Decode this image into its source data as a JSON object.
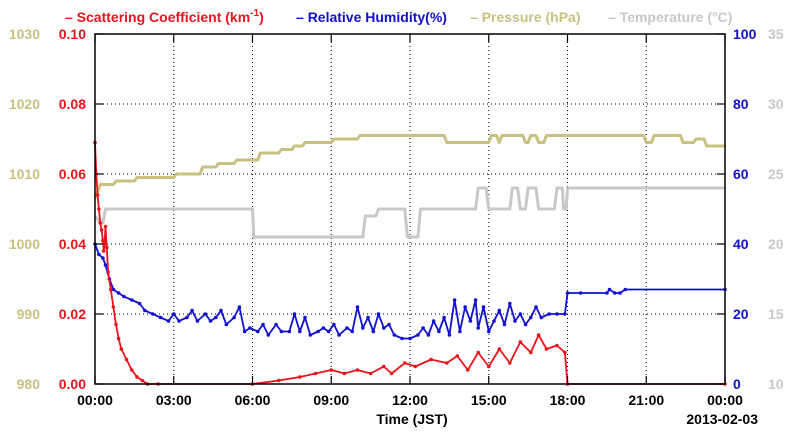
{
  "chart_data": {
    "type": "line",
    "legend": [
      {
        "label": "Scattering Coefficient (km",
        "sup": "-1",
        "suffix": ")",
        "color": "#e8141c"
      },
      {
        "label": "Relative Humidity(%)",
        "color": "#1010d0"
      },
      {
        "label": "Pressure (hPa)",
        "color": "#c8c080"
      },
      {
        "label": "Temperature (°C)",
        "color": "#c8c8c8"
      }
    ],
    "xlabel": "Time (JST)",
    "date_label": "2013-02-03",
    "x_ticks": [
      "00:00",
      "03:00",
      "06:00",
      "09:00",
      "12:00",
      "15:00",
      "18:00",
      "21:00",
      "00:00"
    ],
    "xlim_hours": [
      0,
      24
    ],
    "grid": true,
    "axes": {
      "pressure": {
        "ticks": [
          "1030",
          "1020",
          "1010",
          "1000",
          "990",
          "980"
        ],
        "ylim": [
          980,
          1030
        ],
        "side": "far-left",
        "color": "#c8c080"
      },
      "scattering": {
        "ticks": [
          "0.10",
          "0.08",
          "0.06",
          "0.04",
          "0.02",
          "0.00"
        ],
        "ylim": [
          0,
          0.1
        ],
        "side": "left",
        "color": "#e8141c"
      },
      "humidity": {
        "ticks": [
          "100",
          "80",
          "60",
          "40",
          "20",
          "0"
        ],
        "ylim": [
          0,
          100
        ],
        "side": "right",
        "color": "#1010d0"
      },
      "temperature": {
        "ticks": [
          "35",
          "30",
          "25",
          "20",
          "15",
          "10"
        ],
        "ylim": [
          10,
          35
        ],
        "side": "far-right",
        "color": "#c8c8c8"
      }
    },
    "series": [
      {
        "name": "Pressure (hPa)",
        "axis": "pressure",
        "color": "#c8c080",
        "points": [
          [
            0,
            1006.5
          ],
          [
            0.2,
            1008.5
          ],
          [
            0.7,
            1008.5
          ],
          [
            0.8,
            1009
          ],
          [
            1.5,
            1009
          ],
          [
            1.6,
            1009.5
          ],
          [
            3,
            1009.5
          ],
          [
            3.1,
            1010
          ],
          [
            4,
            1010
          ],
          [
            4.1,
            1011
          ],
          [
            4.6,
            1011
          ],
          [
            4.7,
            1011.5
          ],
          [
            5.3,
            1011.5
          ],
          [
            5.4,
            1012
          ],
          [
            6.2,
            1012
          ],
          [
            6.3,
            1013
          ],
          [
            7,
            1013
          ],
          [
            7.1,
            1013.5
          ],
          [
            7.5,
            1013.5
          ],
          [
            7.6,
            1014
          ],
          [
            7.9,
            1014
          ],
          [
            8,
            1014.5
          ],
          [
            9,
            1014.5
          ],
          [
            9.1,
            1015
          ],
          [
            10,
            1015
          ],
          [
            10.1,
            1015.5
          ],
          [
            13.3,
            1015.5
          ],
          [
            13.4,
            1014.5
          ],
          [
            15,
            1014.5
          ],
          [
            15.1,
            1015.5
          ],
          [
            15.3,
            1015.5
          ],
          [
            15.4,
            1014.5
          ],
          [
            15.5,
            1015.5
          ],
          [
            16.3,
            1015.5
          ],
          [
            16.4,
            1014.5
          ],
          [
            16.5,
            1014.5
          ],
          [
            16.6,
            1015.5
          ],
          [
            16.8,
            1015.5
          ],
          [
            16.9,
            1014.5
          ],
          [
            17.1,
            1014.5
          ],
          [
            17.2,
            1015.5
          ],
          [
            20.9,
            1015.5
          ],
          [
            21,
            1014.5
          ],
          [
            21.2,
            1014.5
          ],
          [
            21.3,
            1015.5
          ],
          [
            22.3,
            1015.5
          ],
          [
            22.4,
            1014.5
          ],
          [
            22.8,
            1014.5
          ],
          [
            22.9,
            1015
          ],
          [
            23.2,
            1015
          ],
          [
            23.3,
            1014
          ],
          [
            24,
            1014
          ]
        ]
      },
      {
        "name": "Temperature (°C)",
        "axis": "temperature",
        "color": "#c8c8c8",
        "points": [
          [
            0,
            22
          ],
          [
            0.2,
            21.5
          ],
          [
            0.3,
            21.5
          ],
          [
            0.4,
            22.5
          ],
          [
            6,
            22.5
          ],
          [
            6.05,
            20.5
          ],
          [
            10.2,
            20.5
          ],
          [
            10.3,
            22
          ],
          [
            10.7,
            22
          ],
          [
            10.8,
            22.5
          ],
          [
            11.8,
            22.5
          ],
          [
            11.9,
            20.5
          ],
          [
            12.3,
            20.5
          ],
          [
            12.4,
            22.5
          ],
          [
            14.5,
            22.5
          ],
          [
            14.6,
            24
          ],
          [
            14.9,
            24
          ],
          [
            15,
            22.5
          ],
          [
            15.8,
            22.5
          ],
          [
            15.9,
            24
          ],
          [
            16.1,
            24
          ],
          [
            16.2,
            22.5
          ],
          [
            16.4,
            22.5
          ],
          [
            16.5,
            24
          ],
          [
            16.8,
            24
          ],
          [
            16.9,
            22.5
          ],
          [
            17.5,
            22.5
          ],
          [
            17.6,
            24
          ],
          [
            17.8,
            24
          ],
          [
            17.85,
            22.5
          ],
          [
            17.95,
            22.5
          ],
          [
            18,
            24
          ],
          [
            24,
            24
          ]
        ]
      },
      {
        "name": "Relative Humidity(%)",
        "axis": "humidity",
        "color": "#1010d0",
        "points": [
          [
            0,
            40
          ],
          [
            0.15,
            37
          ],
          [
            0.3,
            36
          ],
          [
            0.4,
            34
          ],
          [
            0.55,
            30
          ],
          [
            0.7,
            27
          ],
          [
            0.9,
            26
          ],
          [
            1.1,
            25
          ],
          [
            1.4,
            24
          ],
          [
            1.7,
            23
          ],
          [
            1.9,
            21
          ],
          [
            2.2,
            20
          ],
          [
            2.5,
            19
          ],
          [
            2.8,
            18
          ],
          [
            3.0,
            20
          ],
          [
            3.2,
            18
          ],
          [
            3.5,
            19
          ],
          [
            3.7,
            21
          ],
          [
            3.9,
            18
          ],
          [
            4.2,
            20
          ],
          [
            4.4,
            18
          ],
          [
            4.6,
            19
          ],
          [
            4.8,
            21
          ],
          [
            5.0,
            17
          ],
          [
            5.3,
            19
          ],
          [
            5.5,
            22
          ],
          [
            5.7,
            15
          ],
          [
            5.9,
            16
          ],
          [
            6.2,
            15
          ],
          [
            6.4,
            17
          ],
          [
            6.6,
            14
          ],
          [
            6.9,
            17
          ],
          [
            7.1,
            15
          ],
          [
            7.4,
            15
          ],
          [
            7.6,
            20
          ],
          [
            7.8,
            15
          ],
          [
            8.0,
            19
          ],
          [
            8.2,
            14
          ],
          [
            8.5,
            15
          ],
          [
            8.7,
            16
          ],
          [
            8.9,
            15
          ],
          [
            9.1,
            17
          ],
          [
            9.3,
            14
          ],
          [
            9.6,
            16
          ],
          [
            9.8,
            15
          ],
          [
            10.0,
            22
          ],
          [
            10.2,
            16
          ],
          [
            10.4,
            19
          ],
          [
            10.6,
            15
          ],
          [
            10.8,
            20
          ],
          [
            11.0,
            16
          ],
          [
            11.2,
            17
          ],
          [
            11.4,
            14
          ],
          [
            11.7,
            13
          ],
          [
            12.0,
            13
          ],
          [
            12.3,
            14
          ],
          [
            12.5,
            16
          ],
          [
            12.7,
            14
          ],
          [
            12.9,
            18
          ],
          [
            13.1,
            15
          ],
          [
            13.3,
            19
          ],
          [
            13.5,
            14
          ],
          [
            13.7,
            24
          ],
          [
            13.9,
            15
          ],
          [
            14.1,
            22
          ],
          [
            14.3,
            18
          ],
          [
            14.5,
            24
          ],
          [
            14.6,
            16
          ],
          [
            14.8,
            22
          ],
          [
            15.0,
            15
          ],
          [
            15.2,
            18
          ],
          [
            15.4,
            21
          ],
          [
            15.6,
            17
          ],
          [
            15.8,
            23
          ],
          [
            16.0,
            18
          ],
          [
            16.2,
            20
          ],
          [
            16.4,
            17
          ],
          [
            16.6,
            19
          ],
          [
            16.8,
            22
          ],
          [
            17.0,
            19
          ],
          [
            17.3,
            20
          ],
          [
            17.6,
            20
          ],
          [
            17.9,
            20
          ],
          [
            18.0,
            26
          ],
          [
            18.5,
            26
          ],
          [
            19.5,
            26
          ],
          [
            19.6,
            27
          ],
          [
            19.8,
            26
          ],
          [
            20.0,
            26
          ],
          [
            20.2,
            27
          ],
          [
            24,
            27
          ]
        ]
      },
      {
        "name": "Scattering Coefficient (km-1)",
        "axis": "scattering",
        "color": "#e8141c",
        "points": [
          [
            0,
            0.069
          ],
          [
            0.05,
            0.06
          ],
          [
            0.1,
            0.054
          ],
          [
            0.15,
            0.05
          ],
          [
            0.2,
            0.046
          ],
          [
            0.25,
            0.044
          ],
          [
            0.3,
            0.041
          ],
          [
            0.33,
            0.038
          ],
          [
            0.36,
            0.04
          ],
          [
            0.4,
            0.045
          ],
          [
            0.45,
            0.039
          ],
          [
            0.5,
            0.032
          ],
          [
            0.6,
            0.027
          ],
          [
            0.7,
            0.022
          ],
          [
            0.8,
            0.017
          ],
          [
            0.9,
            0.013
          ],
          [
            1.0,
            0.01
          ],
          [
            1.2,
            0.007
          ],
          [
            1.4,
            0.004
          ],
          [
            1.6,
            0.002
          ],
          [
            1.8,
            0.001
          ],
          [
            2.0,
            0.0
          ],
          [
            2.4,
            0.0
          ],
          [
            6.0,
            0.0
          ],
          [
            7.0,
            0.001
          ],
          [
            7.8,
            0.002
          ],
          [
            8.4,
            0.003
          ],
          [
            9.0,
            0.004
          ],
          [
            9.5,
            0.003
          ],
          [
            10.0,
            0.004
          ],
          [
            10.5,
            0.003
          ],
          [
            11.0,
            0.005
          ],
          [
            11.3,
            0.003
          ],
          [
            11.8,
            0.006
          ],
          [
            12.2,
            0.005
          ],
          [
            12.8,
            0.007
          ],
          [
            13.4,
            0.006
          ],
          [
            13.8,
            0.008
          ],
          [
            14.2,
            0.004
          ],
          [
            14.6,
            0.009
          ],
          [
            15.0,
            0.005
          ],
          [
            15.4,
            0.01
          ],
          [
            15.8,
            0.006
          ],
          [
            16.2,
            0.012
          ],
          [
            16.6,
            0.009
          ],
          [
            16.9,
            0.014
          ],
          [
            17.2,
            0.01
          ],
          [
            17.6,
            0.011
          ],
          [
            17.9,
            0.009
          ],
          [
            18.0,
            0.0
          ],
          [
            24,
            0.0
          ]
        ]
      }
    ]
  }
}
